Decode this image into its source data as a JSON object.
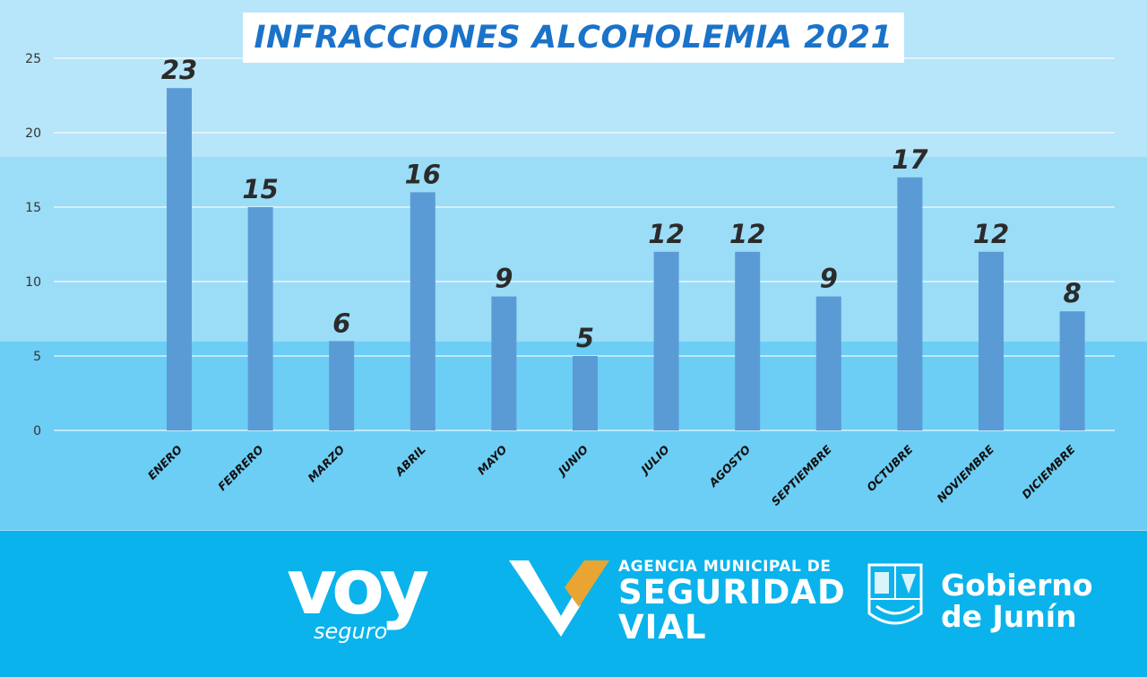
{
  "chart_data": {
    "type": "bar",
    "title": "INFRACCIONES ALCOHOLEMIA 2021",
    "categories": [
      "ENERO",
      "FEBRERO",
      "MARZO",
      "ABRIL",
      "MAYO",
      "JUNIO",
      "JULIO",
      "AGOSTO",
      "SEPTIEMBRE",
      "OCTUBRE",
      "NOVIEMBRE",
      "DICIEMBRE"
    ],
    "values": [
      23,
      15,
      6,
      16,
      9,
      5,
      12,
      12,
      9,
      17,
      12,
      8
    ],
    "ylim": [
      0,
      25
    ],
    "yticks": [
      0,
      5,
      10,
      15,
      20,
      25
    ],
    "grid": true,
    "legend": "none",
    "bar_color": "#5b9bd5",
    "label_color": "#2b2b2b"
  },
  "branding": {
    "voy_word": "voy",
    "voy_sub": "seguro",
    "agency_line1": "AGENCIA MUNICIPAL DE",
    "agency_line2": "SEGURIDAD",
    "agency_line3": "VIAL",
    "gov_line1": "Gobierno",
    "gov_line2": "de Junín",
    "accent_gold": "#e8a531",
    "footer_color": "#0ab3ec"
  }
}
